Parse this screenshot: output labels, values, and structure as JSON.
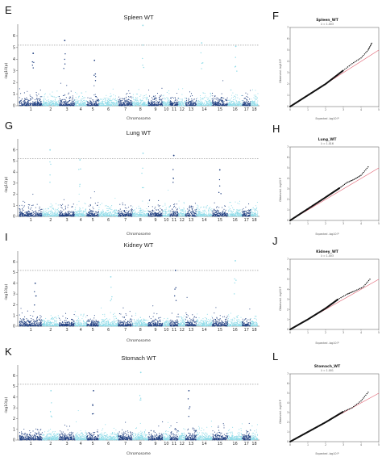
{
  "panels": [
    {
      "letter": "E",
      "title": "Spleen WT",
      "xlabel": "Chromosome",
      "ylabel": "-log10(p)",
      "chromosomes": [
        "1",
        "2",
        "3",
        "4",
        "5",
        "6",
        "7",
        "8",
        "9",
        "10",
        "11",
        "12",
        "13",
        "14",
        "15",
        "16",
        "17",
        "18"
      ]
    },
    {
      "letter": "G",
      "title": "Lung WT",
      "xlabel": "Chromosome",
      "ylabel": "-log10(p)",
      "chromosomes": [
        "1",
        "2",
        "3",
        "4",
        "5",
        "6",
        "7",
        "8",
        "9",
        "10",
        "11",
        "12",
        "13",
        "14",
        "15",
        "16",
        "17",
        "18"
      ]
    },
    {
      "letter": "I",
      "title": "Kidney WT",
      "xlabel": "Chromosome",
      "ylabel": "-log10(p)",
      "chromosomes": [
        "1",
        "2",
        "3",
        "4",
        "5",
        "6",
        "7",
        "8",
        "9",
        "10",
        "11",
        "12",
        "13",
        "14",
        "15",
        "16",
        "17",
        "18"
      ]
    },
    {
      "letter": "K",
      "title": "Stomach WT",
      "xlabel": "Chromosome",
      "ylabel": "-log10(p)",
      "chromosomes": [
        "1",
        "2",
        "3",
        "4",
        "5",
        "6",
        "7",
        "8",
        "9",
        "10",
        "11",
        "12",
        "13",
        "14",
        "15",
        "16",
        "17",
        "18"
      ]
    }
  ],
  "qq_panels": [
    {
      "letter": "F",
      "title": "Spleen_WT",
      "subtitle": "λ = 1.003",
      "xlabel": "Expected -log10 P",
      "ylabel": "Observed -log10 P"
    },
    {
      "letter": "H",
      "title": "Lung_WT",
      "subtitle": "λ = 1.016",
      "xlabel": "Expected -log10 P",
      "ylabel": "Observed -log10 P"
    },
    {
      "letter": "J",
      "title": "Kidney_WT",
      "subtitle": "λ = 1.003",
      "xlabel": "Expected -log10 P",
      "ylabel": "Observed -log10 P"
    },
    {
      "letter": "L",
      "title": "Stomach_WT",
      "subtitle": "λ = 1.001",
      "xlabel": "Expected -log10 P",
      "ylabel": "Observed -log10 P"
    }
  ],
  "colors": {
    "dark": "#1f3f80",
    "light": "#8fdbe8",
    "threshold": "#888888",
    "diagonal": "#e06070"
  },
  "chart_data": [
    {
      "type": "scatter",
      "title": "Spleen WT",
      "xlabel": "Chromosome",
      "ylabel": "-log10(p)",
      "ylim": [
        0,
        7
      ],
      "yticks": [
        0,
        1,
        2,
        3,
        4,
        5,
        6
      ],
      "threshold": 5.2,
      "peaks": [
        {
          "chr": 1,
          "value": 4.5
        },
        {
          "chr": 3,
          "value": 5.6
        },
        {
          "chr": 5,
          "value": 3.9
        },
        {
          "chr": 8,
          "value": 6.9
        },
        {
          "chr": 14,
          "value": 5.4
        },
        {
          "chr": 16,
          "value": 5.1
        }
      ]
    },
    {
      "type": "scatter",
      "title": "Lung WT",
      "xlabel": "Chromosome",
      "ylabel": "-log10(p)",
      "ylim": [
        0,
        7
      ],
      "yticks": [
        0,
        1,
        2,
        3,
        4,
        5,
        6
      ],
      "threshold": 5.2,
      "peaks": [
        {
          "chr": 2,
          "value": 6.0
        },
        {
          "chr": 4,
          "value": 5.1
        },
        {
          "chr": 8,
          "value": 5.7
        },
        {
          "chr": 11,
          "value": 5.5
        },
        {
          "chr": 15,
          "value": 4.2
        }
      ]
    },
    {
      "type": "scatter",
      "title": "Kidney WT",
      "xlabel": "Chromosome",
      "ylabel": "-log10(p)",
      "ylim": [
        0,
        7
      ],
      "yticks": [
        0,
        1,
        2,
        3,
        4,
        5,
        6
      ],
      "threshold": 5.2,
      "peaks": [
        {
          "chr": 1,
          "value": 4.0
        },
        {
          "chr": 6,
          "value": 4.6
        },
        {
          "chr": 11,
          "value": 5.2
        },
        {
          "chr": 16,
          "value": 6.1
        }
      ]
    },
    {
      "type": "scatter",
      "title": "Stomach WT",
      "xlabel": "Chromosome",
      "ylabel": "-log10(p)",
      "ylim": [
        0,
        7
      ],
      "yticks": [
        0,
        1,
        2,
        3,
        4,
        5,
        6
      ],
      "threshold": 5.2,
      "peaks": [
        {
          "chr": 2,
          "value": 4.6
        },
        {
          "chr": 5,
          "value": 4.6
        },
        {
          "chr": 8,
          "value": 6.3
        },
        {
          "chr": 13,
          "value": 4.6
        }
      ]
    },
    {
      "type": "scatter",
      "title": "Spleen_WT",
      "xlabel": "Expected -log10 P",
      "ylabel": "Observed -log10 P",
      "xlim": [
        0,
        5
      ],
      "ylim": [
        0,
        7
      ],
      "xticks": [
        0,
        1,
        2,
        3,
        4,
        5
      ],
      "yticks": [
        0,
        1,
        2,
        3,
        4,
        5,
        6,
        7
      ],
      "curve": [
        [
          0,
          0
        ],
        [
          1,
          1
        ],
        [
          2,
          2
        ],
        [
          3,
          3.2
        ],
        [
          3.5,
          3.8
        ],
        [
          4,
          4.3
        ],
        [
          4.4,
          5.0
        ],
        [
          4.6,
          5.6
        ]
      ]
    },
    {
      "type": "scatter",
      "title": "Lung_WT",
      "xlabel": "Expected -log10 P",
      "ylabel": "Observed -log10 P",
      "xlim": [
        0,
        5
      ],
      "ylim": [
        0,
        7
      ],
      "xticks": [
        0,
        1,
        2,
        3,
        4,
        5
      ],
      "yticks": [
        0,
        1,
        2,
        3,
        4,
        5,
        6,
        7
      ],
      "curve": [
        [
          0,
          0
        ],
        [
          1,
          1.1
        ],
        [
          2,
          2.2
        ],
        [
          2.8,
          3.1
        ],
        [
          3.2,
          3.6
        ],
        [
          3.6,
          3.9
        ],
        [
          4.0,
          4.3
        ],
        [
          4.4,
          5.1
        ]
      ]
    },
    {
      "type": "scatter",
      "title": "Kidney_WT",
      "xlabel": "Expected -log10 P",
      "ylabel": "Observed -log10 P",
      "xlim": [
        0,
        5
      ],
      "ylim": [
        0,
        7
      ],
      "xticks": [
        0,
        1,
        2,
        3,
        4,
        5
      ],
      "yticks": [
        0,
        1,
        2,
        3,
        4,
        5,
        6,
        7
      ],
      "curve": [
        [
          0,
          0
        ],
        [
          1,
          1
        ],
        [
          2,
          2.1
        ],
        [
          2.7,
          3.0
        ],
        [
          3.2,
          3.5
        ],
        [
          3.6,
          3.8
        ],
        [
          4.1,
          4.2
        ],
        [
          4.5,
          5.0
        ]
      ]
    },
    {
      "type": "scatter",
      "title": "Stomach_WT",
      "xlabel": "Expected -log10 P",
      "ylabel": "Observed -log10 P",
      "xlim": [
        0,
        5
      ],
      "ylim": [
        0,
        7
      ],
      "xticks": [
        0,
        1,
        2,
        3,
        4,
        5
      ],
      "yticks": [
        0,
        1,
        2,
        3,
        4,
        5,
        6,
        7
      ],
      "curve": [
        [
          0,
          0
        ],
        [
          1,
          1
        ],
        [
          2,
          2
        ],
        [
          3,
          3.1
        ],
        [
          3.5,
          3.5
        ],
        [
          4.0,
          4.2
        ],
        [
          4.4,
          5.1
        ]
      ]
    }
  ]
}
